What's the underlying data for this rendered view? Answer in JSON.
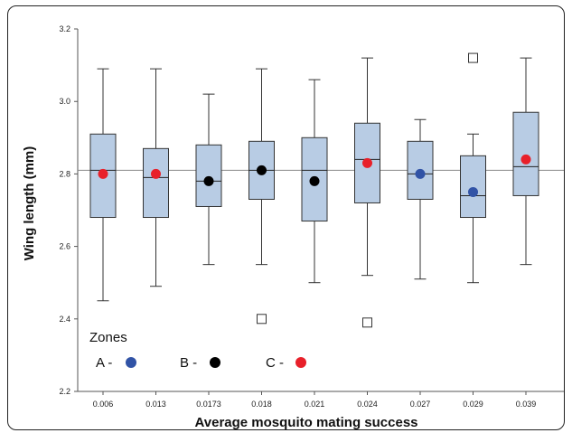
{
  "chart_data": {
    "type": "box",
    "xlabel": "Average mosquito mating success",
    "ylabel": "Wing length (mm)",
    "ylim": [
      2.2,
      3.2
    ],
    "yticks": [
      "2.2",
      "2.4",
      "2.6",
      "2.8",
      "3.0",
      "3.2"
    ],
    "reference_line": 2.81,
    "colors": {
      "box_fill": "#b8cce4",
      "zone_a": "#3153a6",
      "zone_b": "#000000",
      "zone_c": "#e8202a"
    },
    "categories": [
      "0.006",
      "0.013",
      "0.0173",
      "0.018",
      "0.021",
      "0.024",
      "0.027",
      "0.029",
      "0.039"
    ],
    "boxes": [
      {
        "whisker_low": 2.45,
        "q1": 2.68,
        "median": 2.81,
        "q3": 2.91,
        "whisker_high": 3.09,
        "outliers": [],
        "mean": 2.8,
        "zone": "C"
      },
      {
        "whisker_low": 2.49,
        "q1": 2.68,
        "median": 2.79,
        "q3": 2.87,
        "whisker_high": 3.09,
        "outliers": [],
        "mean": 2.8,
        "zone": "C"
      },
      {
        "whisker_low": 2.55,
        "q1": 2.71,
        "median": 2.78,
        "q3": 2.88,
        "whisker_high": 3.02,
        "outliers": [],
        "mean": 2.78,
        "zone": "B"
      },
      {
        "whisker_low": 2.55,
        "q1": 2.73,
        "median": 2.81,
        "q3": 2.89,
        "whisker_high": 3.09,
        "outliers": [
          2.4
        ],
        "mean": 2.81,
        "zone": "B"
      },
      {
        "whisker_low": 2.5,
        "q1": 2.67,
        "median": 2.81,
        "q3": 2.9,
        "whisker_high": 3.06,
        "outliers": [],
        "mean": 2.78,
        "zone": "B"
      },
      {
        "whisker_low": 2.52,
        "q1": 2.72,
        "median": 2.84,
        "q3": 2.94,
        "whisker_high": 3.12,
        "outliers": [
          2.39
        ],
        "mean": 2.83,
        "zone": "C"
      },
      {
        "whisker_low": 2.51,
        "q1": 2.73,
        "median": 2.8,
        "q3": 2.89,
        "whisker_high": 2.95,
        "outliers": [],
        "mean": 2.8,
        "zone": "A"
      },
      {
        "whisker_low": 2.5,
        "q1": 2.68,
        "median": 2.74,
        "q3": 2.85,
        "whisker_high": 2.91,
        "outliers": [
          3.12
        ],
        "mean": 2.75,
        "zone": "A"
      },
      {
        "whisker_low": 2.55,
        "q1": 2.74,
        "median": 2.82,
        "q3": 2.97,
        "whisker_high": 3.12,
        "outliers": [],
        "mean": 2.84,
        "zone": "C"
      }
    ],
    "legend": {
      "title": "Zones",
      "items": [
        {
          "label": "A -",
          "zone": "A"
        },
        {
          "label": "B -",
          "zone": "B"
        },
        {
          "label": "C -",
          "zone": "C"
        }
      ]
    }
  }
}
